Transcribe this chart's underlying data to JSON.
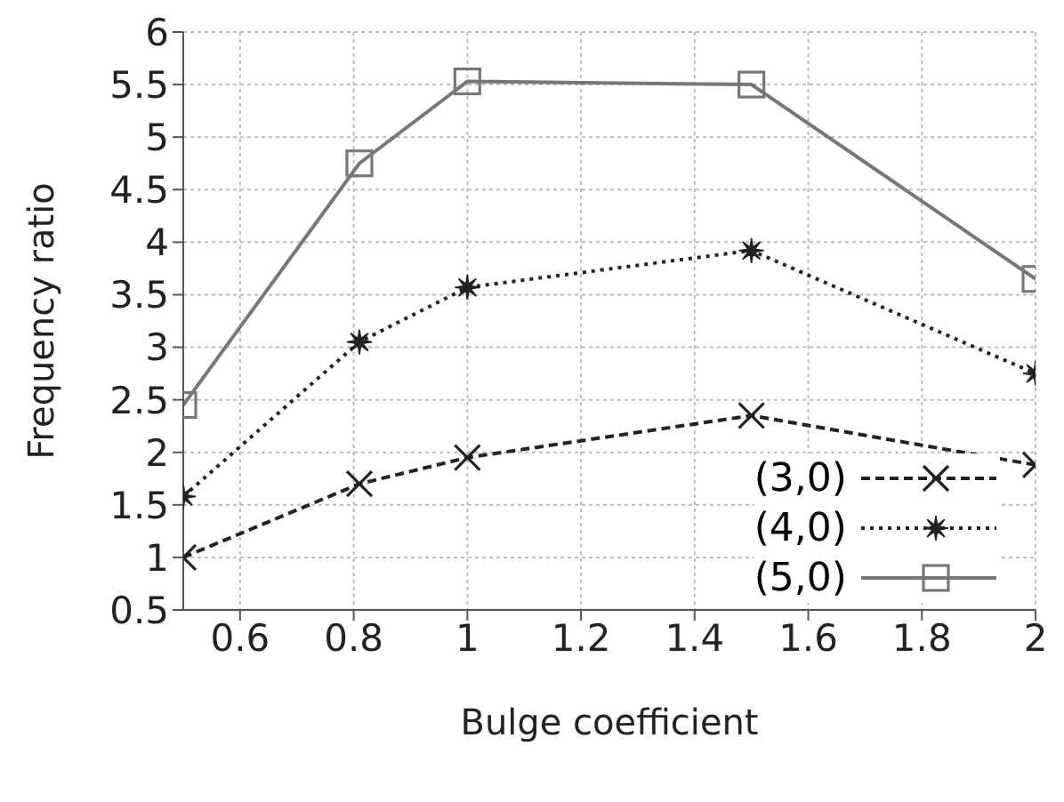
{
  "chart_data": {
    "type": "line",
    "xlabel": "Bulge coefficient",
    "ylabel": "Frequency ratio",
    "x": [
      0.5,
      0.81,
      1.0,
      1.5,
      2.0
    ],
    "series": [
      {
        "name": "(3,0)",
        "color": "#222222",
        "values": [
          1.0,
          1.7,
          1.95,
          2.35,
          1.88
        ],
        "marker": "cross",
        "line_style": "dashed"
      },
      {
        "name": "(4,0)",
        "color": "#222222",
        "values": [
          1.58,
          3.05,
          3.57,
          3.92,
          2.75
        ],
        "marker": "star",
        "line_style": "dotted"
      },
      {
        "name": "(5,0)",
        "color": "#777777",
        "values": [
          2.45,
          4.75,
          5.53,
          5.5,
          3.65
        ],
        "marker": "square",
        "line_style": "solid"
      }
    ],
    "xlim": [
      0.5,
      2
    ],
    "xticks": [
      0.6,
      0.8,
      1,
      1.2,
      1.4,
      1.6,
      1.8,
      2
    ],
    "ylim": [
      0.5,
      6
    ],
    "yticks": [
      0.5,
      1,
      1.5,
      2,
      2.5,
      3,
      3.5,
      4,
      4.5,
      5,
      5.5,
      6
    ],
    "grid": true,
    "legend": "bottom right"
  }
}
